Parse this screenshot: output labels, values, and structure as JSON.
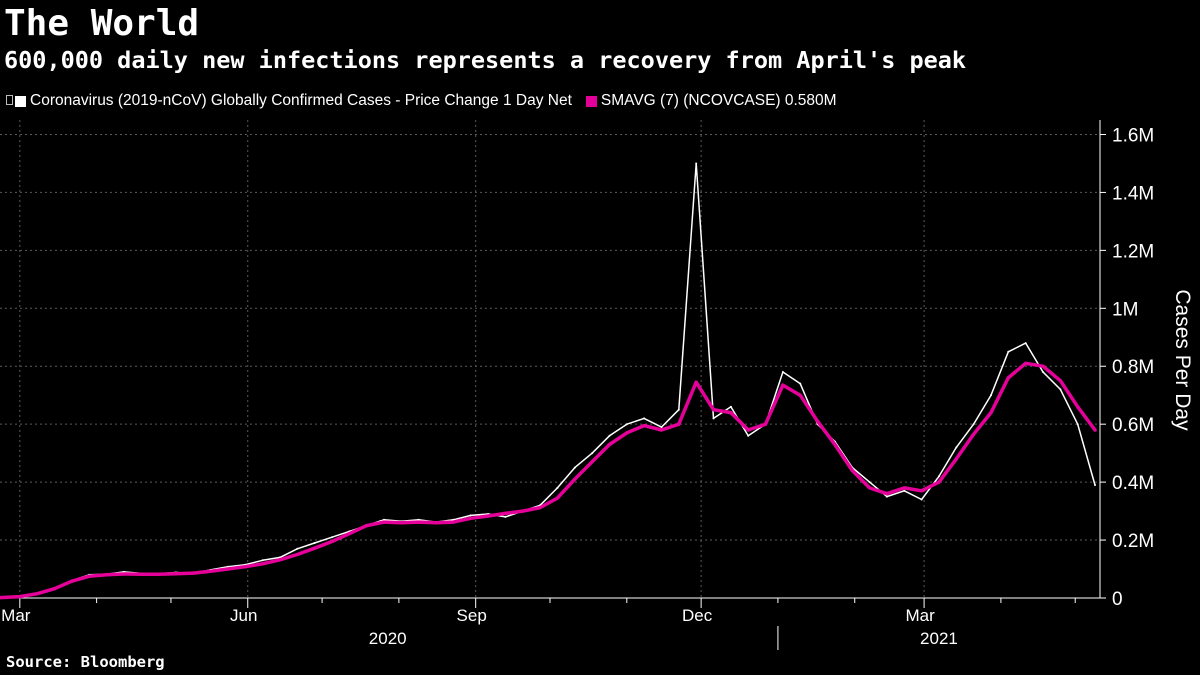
{
  "title": "The World",
  "subtitle": "600,000 daily new infections represents a recovery from April's peak",
  "legend": [
    {
      "label": "Coronavirus (2019-nCoV) Globally Confirmed Cases - Price Change 1 Day Net",
      "color": "#ffffff",
      "icon": "pin-icon"
    },
    {
      "label": "SMAVG (7) (NCOVCASE) 0.580M",
      "color": "#e6009a"
    }
  ],
  "source": "Source: Bloomberg",
  "chart_data": {
    "type": "line",
    "title": "The World",
    "subtitle": "600,000 daily new infections represents a recovery from April's peak",
    "xlabel": "",
    "ylabel": "Cases Per Day",
    "y_unit": "persons per day",
    "ylim": [
      0,
      1650000
    ],
    "xlim": [
      "2020-02-22",
      "2021-05-11"
    ],
    "grid": true,
    "y_axis_side": "right",
    "yticks": [
      0,
      200000,
      400000,
      600000,
      800000,
      1000000,
      1200000,
      1400000,
      1600000
    ],
    "ytick_labels": [
      "0",
      "0.2M",
      "0.4M",
      "0.6M",
      "0.8M",
      "1M",
      "1.2M",
      "1.4M",
      "1.6M"
    ],
    "xticks": [
      {
        "date": "2020-03-01",
        "label": "Mar"
      },
      {
        "date": "2020-06-01",
        "label": "Jun"
      },
      {
        "date": "2020-09-01",
        "label": "Sep"
      },
      {
        "date": "2020-12-01",
        "label": "Dec"
      },
      {
        "date": "2021-03-01",
        "label": "Mar"
      }
    ],
    "minor_xticks": [
      "2020-04-01",
      "2020-05-01",
      "2020-07-01",
      "2020-08-01",
      "2020-10-01",
      "2020-11-01",
      "2021-01-01",
      "2021-02-01",
      "2021-04-01",
      "2021-05-01"
    ],
    "year_labels": [
      {
        "label": "2020",
        "from": "2020-02-22",
        "to": "2020-12-31"
      },
      {
        "label": "2021",
        "from": "2021-01-01",
        "to": "2021-05-11"
      }
    ],
    "year_separator": "2021-01-01",
    "series": [
      {
        "name": "Coronavirus (2019-nCoV) Globally Confirmed Cases - Price Change 1 Day Net",
        "color": "#ffffff",
        "x": [
          "2020-02-22",
          "2020-03-01",
          "2020-03-08",
          "2020-03-15",
          "2020-03-22",
          "2020-03-29",
          "2020-04-05",
          "2020-04-12",
          "2020-04-19",
          "2020-04-26",
          "2020-05-03",
          "2020-05-10",
          "2020-05-17",
          "2020-05-24",
          "2020-05-31",
          "2020-06-07",
          "2020-06-14",
          "2020-06-21",
          "2020-06-28",
          "2020-07-05",
          "2020-07-12",
          "2020-07-19",
          "2020-07-26",
          "2020-08-02",
          "2020-08-09",
          "2020-08-16",
          "2020-08-23",
          "2020-08-30",
          "2020-09-06",
          "2020-09-13",
          "2020-09-20",
          "2020-09-27",
          "2020-10-04",
          "2020-10-11",
          "2020-10-18",
          "2020-10-25",
          "2020-11-01",
          "2020-11-08",
          "2020-11-15",
          "2020-11-22",
          "2020-11-29",
          "2020-12-06",
          "2020-12-13",
          "2020-12-20",
          "2020-12-27",
          "2021-01-03",
          "2021-01-10",
          "2021-01-17",
          "2021-01-24",
          "2021-01-31",
          "2021-02-07",
          "2021-02-14",
          "2021-02-21",
          "2021-02-28",
          "2021-03-07",
          "2021-03-14",
          "2021-03-21",
          "2021-03-28",
          "2021-04-04",
          "2021-04-11",
          "2021-04-18",
          "2021-04-25",
          "2021-05-02",
          "2021-05-09"
        ],
        "values": [
          2000,
          5000,
          16000,
          35000,
          60000,
          80000,
          82000,
          90000,
          85000,
          84000,
          88000,
          85000,
          97000,
          108000,
          115000,
          130000,
          140000,
          170000,
          190000,
          210000,
          230000,
          250000,
          270000,
          265000,
          270000,
          262000,
          270000,
          285000,
          290000,
          280000,
          300000,
          320000,
          380000,
          450000,
          500000,
          560000,
          600000,
          620000,
          590000,
          650000,
          1500000,
          620000,
          660000,
          560000,
          600000,
          780000,
          740000,
          600000,
          540000,
          450000,
          400000,
          350000,
          370000,
          340000,
          420000,
          520000,
          600000,
          700000,
          850000,
          880000,
          780000,
          720000,
          600000,
          390000
        ]
      },
      {
        "name": "SMAVG (7) (NCOVCASE)",
        "color": "#e6009a",
        "last_value": "0.580M",
        "x": [
          "2020-02-22",
          "2020-03-01",
          "2020-03-08",
          "2020-03-15",
          "2020-03-22",
          "2020-03-29",
          "2020-04-05",
          "2020-04-12",
          "2020-04-19",
          "2020-04-26",
          "2020-05-03",
          "2020-05-10",
          "2020-05-17",
          "2020-05-24",
          "2020-05-31",
          "2020-06-07",
          "2020-06-14",
          "2020-06-21",
          "2020-06-28",
          "2020-07-05",
          "2020-07-12",
          "2020-07-19",
          "2020-07-26",
          "2020-08-02",
          "2020-08-09",
          "2020-08-16",
          "2020-08-23",
          "2020-08-30",
          "2020-09-06",
          "2020-09-13",
          "2020-09-20",
          "2020-09-27",
          "2020-10-04",
          "2020-10-11",
          "2020-10-18",
          "2020-10-25",
          "2020-11-01",
          "2020-11-08",
          "2020-11-15",
          "2020-11-22",
          "2020-11-29",
          "2020-12-06",
          "2020-12-13",
          "2020-12-20",
          "2020-12-27",
          "2021-01-03",
          "2021-01-10",
          "2021-01-17",
          "2021-01-24",
          "2021-01-31",
          "2021-02-07",
          "2021-02-14",
          "2021-02-21",
          "2021-02-28",
          "2021-03-07",
          "2021-03-14",
          "2021-03-21",
          "2021-03-28",
          "2021-04-04",
          "2021-04-11",
          "2021-04-18",
          "2021-04-25",
          "2021-05-02",
          "2021-05-09"
        ],
        "values": [
          1500,
          5000,
          15000,
          32000,
          58000,
          75000,
          80000,
          83000,
          82000,
          82000,
          84000,
          86000,
          92000,
          100000,
          108000,
          118000,
          132000,
          150000,
          172000,
          195000,
          222000,
          250000,
          262000,
          260000,
          262000,
          260000,
          262000,
          275000,
          283000,
          292000,
          300000,
          312000,
          345000,
          410000,
          470000,
          530000,
          570000,
          595000,
          580000,
          600000,
          745000,
          650000,
          640000,
          580000,
          600000,
          735000,
          700000,
          610000,
          530000,
          440000,
          380000,
          360000,
          380000,
          370000,
          400000,
          480000,
          565000,
          640000,
          760000,
          810000,
          800000,
          750000,
          660000,
          580000
        ]
      }
    ]
  }
}
